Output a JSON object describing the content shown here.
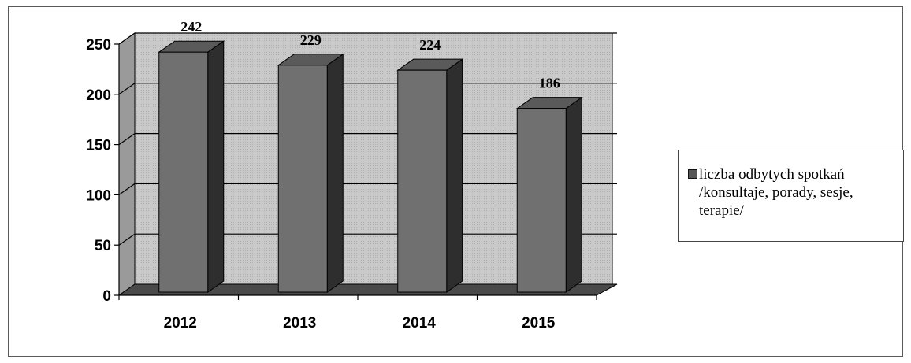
{
  "chart_data": {
    "type": "bar",
    "categories": [
      "2012",
      "2013",
      "2014",
      "2015"
    ],
    "series": [
      {
        "name": "liczba odbytych spotkań /konsultaje, porady, sesje, terapie/",
        "values": [
          242,
          229,
          224,
          186
        ]
      }
    ],
    "data_labels": [
      "242",
      "229",
      "224",
      "186"
    ],
    "yticks": [
      "0",
      "50",
      "100",
      "150",
      "200",
      "250"
    ],
    "ylim": [
      0,
      250
    ],
    "title": "",
    "xlabel": "",
    "ylabel": "",
    "grid": true,
    "three_d": true,
    "legend_position": "right",
    "colors": {
      "bar_front": "#707070",
      "bar_top": "#5a5a5a",
      "bar_side": "#2e2e2e",
      "walls": "#c9c9c9",
      "floor": "#4a4a4a",
      "gridline": "#000000"
    }
  }
}
